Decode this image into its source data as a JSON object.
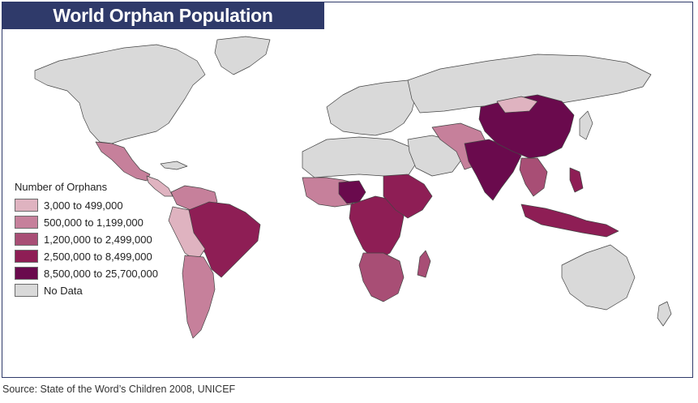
{
  "title": "World Orphan Population",
  "legend": {
    "title": "Number of Orphans",
    "items": [
      {
        "label": "3,000 to 499,000",
        "color": "#dfb3c0"
      },
      {
        "label": "500,000 to 1,199,000",
        "color": "#c6809b"
      },
      {
        "label": "1,200,000 to 2,499,000",
        "color": "#a84e75"
      },
      {
        "label": "2,500,000 to 8,499,000",
        "color": "#8e1e55"
      },
      {
        "label": "8,500,000 to 25,700,000",
        "color": "#6a0a4d"
      },
      {
        "label": "No Data",
        "color": "#d9d9d9"
      }
    ]
  },
  "source": "Source:  State of the Word’s Children 2008, UNICEF"
}
